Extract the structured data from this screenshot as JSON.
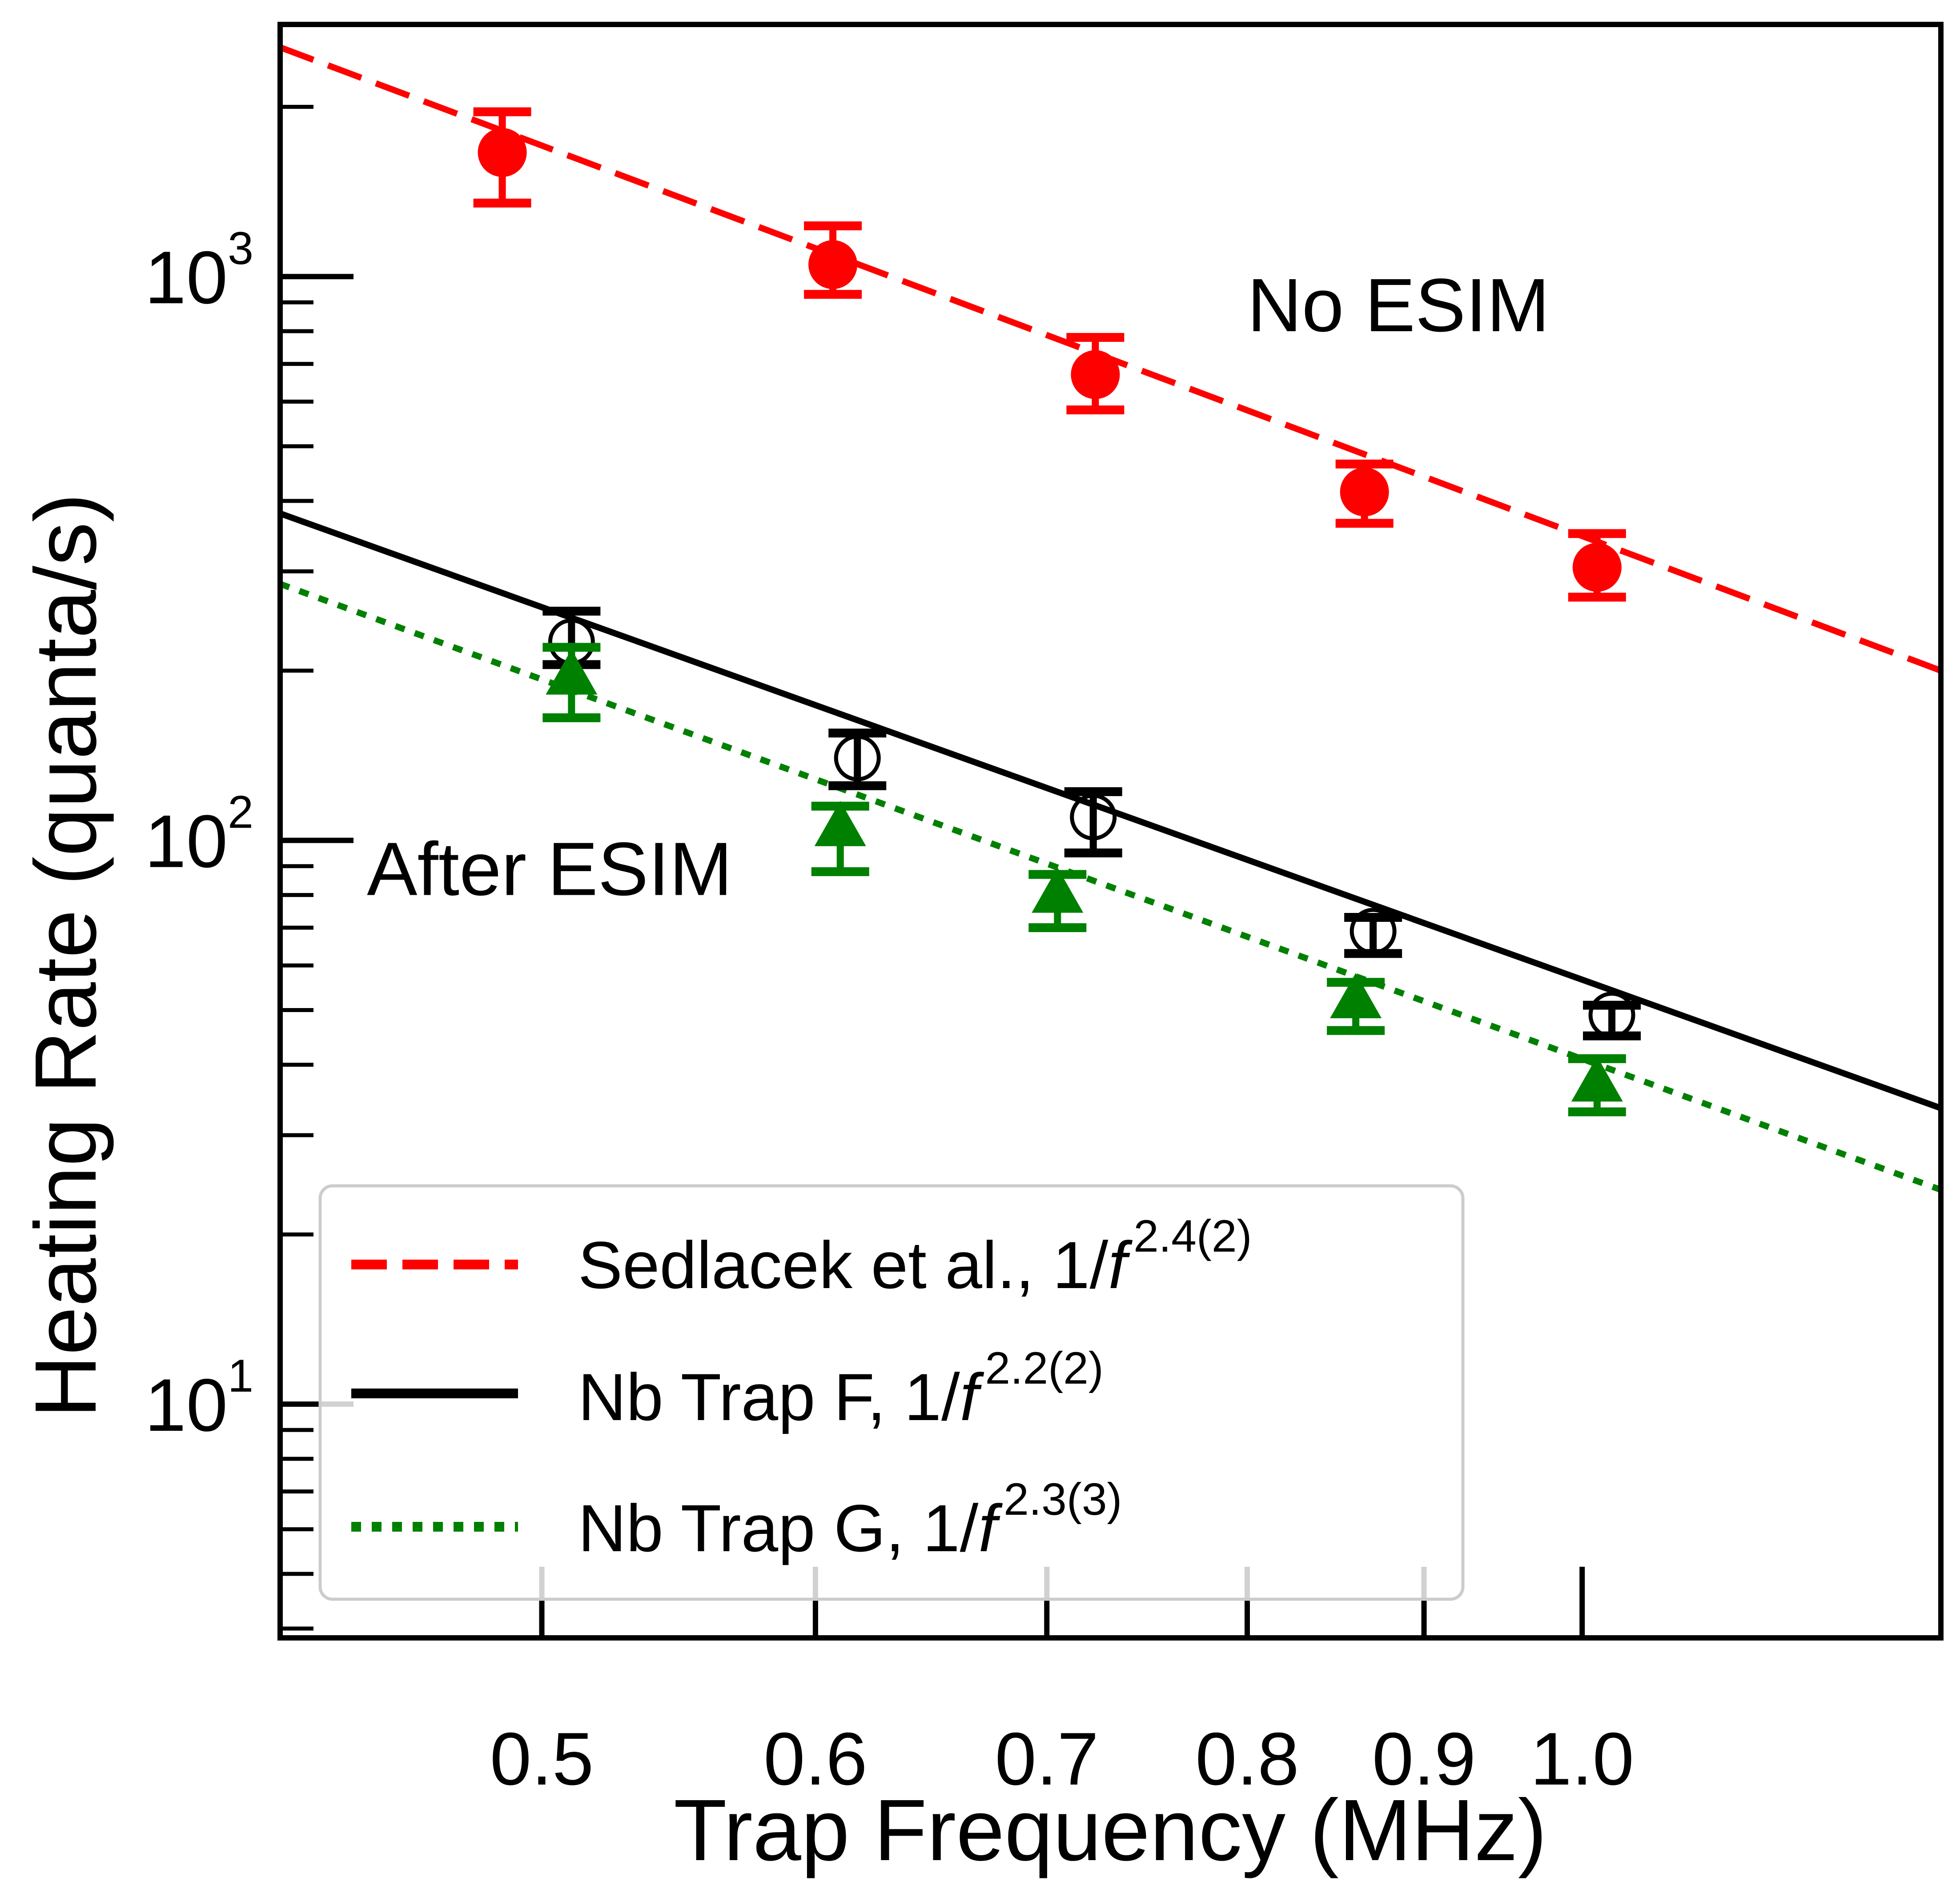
{
  "chart_data": {
    "type": "scatter",
    "xscale": "log",
    "yscale": "log",
    "xlabel": "Trap Frequency (MHz)",
    "ylabel": "Heating Rate (quanta/s)",
    "xlim": [
      0.42,
      1.27
    ],
    "ylim": [
      3.85,
      2800
    ],
    "xticks": [
      {
        "value": 0.5,
        "label": "0.5"
      },
      {
        "value": 0.6,
        "label": "0.6"
      },
      {
        "value": 0.7,
        "label": "0.7"
      },
      {
        "value": 0.8,
        "label": "0.8"
      },
      {
        "value": 0.9,
        "label": "0.9"
      },
      {
        "value": 1.0,
        "label": "1.0"
      }
    ],
    "yticks": [
      {
        "value": 10,
        "base": "10",
        "exp": "1"
      },
      {
        "value": 100,
        "base": "10",
        "exp": "2"
      },
      {
        "value": 1000,
        "base": "10",
        "exp": "3"
      }
    ],
    "annotations": [
      {
        "text": "No ESIM",
        "x": 0.8,
        "y": 800
      },
      {
        "text": "After ESIM",
        "x": 0.445,
        "y": 80
      }
    ],
    "legend": {
      "location": "lower-left",
      "entries": [
        {
          "series": "sedlacek",
          "label": "Sedlacek et al., 1/",
          "italic": "f",
          "exp": "2.4(2)"
        },
        {
          "series": "trap_f",
          "label": "Nb Trap F, 1/",
          "italic": "f",
          "exp": "2.2(2)"
        },
        {
          "series": "trap_g",
          "label": "Nb Trap G, 1/",
          "italic": "f",
          "exp": "2.3(3)"
        }
      ]
    },
    "series": [
      {
        "id": "sedlacek",
        "name": "Sedlacek et al.",
        "color": "#ff0000",
        "marker": "filled-circle",
        "line": "dashed",
        "fit": {
          "x0": 0.42,
          "y0": 2550,
          "x1": 1.27,
          "y1": 200
        },
        "points": [
          {
            "x": 0.487,
            "y": 1660,
            "lo": 1350,
            "hi": 1960
          },
          {
            "x": 0.607,
            "y": 1050,
            "lo": 930,
            "hi": 1230
          },
          {
            "x": 0.723,
            "y": 670,
            "lo": 580,
            "hi": 780
          },
          {
            "x": 0.865,
            "y": 415,
            "lo": 365,
            "hi": 465
          },
          {
            "x": 1.01,
            "y": 305,
            "lo": 270,
            "hi": 350
          }
        ]
      },
      {
        "id": "trap_f",
        "name": "Nb Trap F",
        "color": "#000000",
        "marker": "open-circle",
        "line": "solid",
        "fit": {
          "x0": 0.42,
          "y0": 380,
          "x1": 1.27,
          "y1": 33.5
        },
        "points": [
          {
            "x": 0.51,
            "y": 225,
            "lo": 205,
            "hi": 255
          },
          {
            "x": 0.617,
            "y": 140,
            "lo": 125,
            "hi": 155
          },
          {
            "x": 0.722,
            "y": 110,
            "lo": 95,
            "hi": 122
          },
          {
            "x": 0.87,
            "y": 69,
            "lo": 63,
            "hi": 73
          },
          {
            "x": 1.02,
            "y": 49,
            "lo": 45,
            "hi": 51
          }
        ]
      },
      {
        "id": "trap_g",
        "name": "Nb Trap G",
        "color": "#008000",
        "marker": "filled-triangle",
        "line": "dotted",
        "fit": {
          "x0": 0.42,
          "y0": 285,
          "x1": 1.27,
          "y1": 24
        },
        "points": [
          {
            "x": 0.51,
            "y": 195,
            "lo": 165,
            "hi": 220
          },
          {
            "x": 0.61,
            "y": 105,
            "lo": 88,
            "hi": 115
          },
          {
            "x": 0.705,
            "y": 80,
            "lo": 70,
            "hi": 87
          },
          {
            "x": 0.86,
            "y": 52,
            "lo": 46,
            "hi": 56
          },
          {
            "x": 1.01,
            "y": 37,
            "lo": 33,
            "hi": 41
          }
        ]
      }
    ]
  }
}
